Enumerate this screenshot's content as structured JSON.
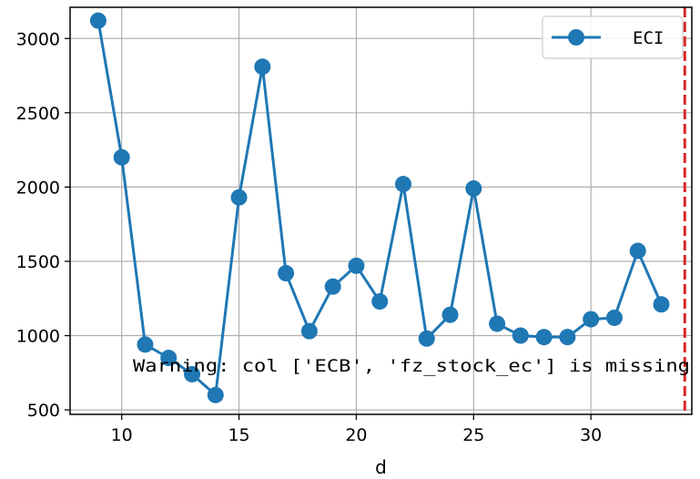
{
  "chart_data": {
    "type": "line",
    "xlabel": "d",
    "ylabel": "",
    "xlim": [
      7.8,
      34.3
    ],
    "ylim": [
      470,
      3210
    ],
    "x_ticks": [
      10,
      15,
      20,
      25,
      30
    ],
    "y_ticks": [
      500,
      1000,
      1500,
      2000,
      2500,
      3000
    ],
    "grid": true,
    "legend_position": "top-right",
    "series": [
      {
        "name": "ECI",
        "color": "#1f77b4",
        "marker": "circle",
        "x": [
          9,
          10,
          11,
          12,
          13,
          14,
          15,
          16,
          17,
          18,
          19,
          20,
          21,
          22,
          23,
          24,
          25,
          26,
          27,
          28,
          29,
          30,
          31,
          32,
          33
        ],
        "y": [
          3120,
          2200,
          940,
          850,
          740,
          600,
          1930,
          2810,
          1420,
          1030,
          1330,
          1470,
          1230,
          2020,
          980,
          1140,
          1990,
          1080,
          1000,
          990,
          990,
          1110,
          1120,
          1570,
          1210
        ]
      }
    ],
    "vertical_line": {
      "x": 34,
      "color": "#d62728",
      "style": "dashed"
    },
    "annotations": [
      {
        "text": "Warning: col ['ECB', 'fz_stock_ec'] is missing"
      }
    ]
  }
}
